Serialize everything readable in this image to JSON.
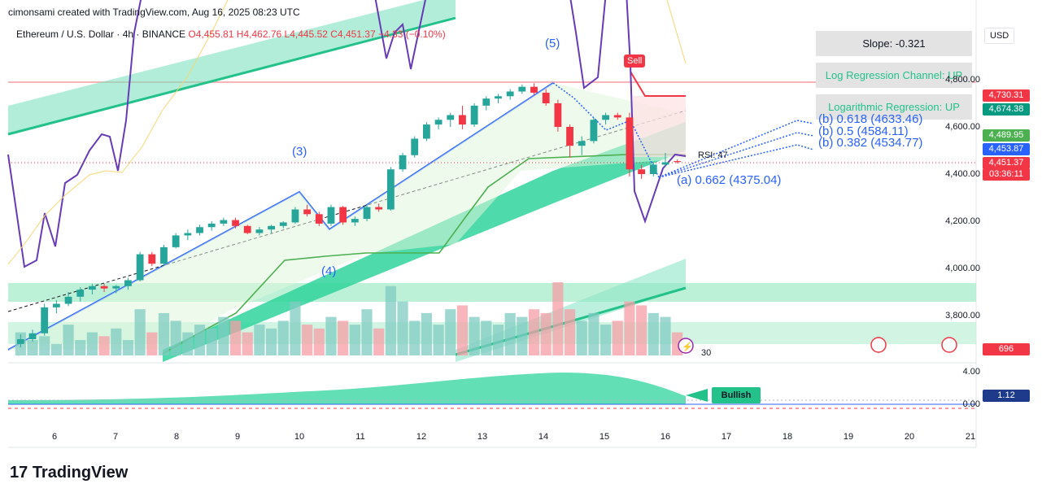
{
  "header": {
    "created_by": "cimonsami created with TradingView.com, Aug 16, 2025 08:23 UTC",
    "symbol": "Ethereum / U.S. Dollar · 4h · BINANCE",
    "open": "O4,455.81",
    "high": "H4,462.76",
    "low": "L4,445.52",
    "close": "C4,451.37",
    "change": "−4.33 (−0.10%)"
  },
  "currency_button": "USD",
  "info_boxes": {
    "slope": "Slope: -0.321",
    "log_reg_channel": "Log Regression Channel: UP",
    "log_regression": "Logarithmic Regression: UP"
  },
  "fib_levels": {
    "b618": "(b) 0.618 (4633.46)",
    "b5": "(b) 0.5 (4584.11)",
    "b382": "(b) 0.382 (4534.77)",
    "a662": "(a) 0.662 (4375.04)"
  },
  "waves": {
    "w3": "(3)",
    "w4": "(4)",
    "w5": "(5)"
  },
  "sell_label": "Sell",
  "rsi_label": "RSI: 47",
  "volume_label": "30",
  "oscillator_label": "Bullish",
  "price_axis": [
    "4,800.00",
    "4,600.00",
    "4,400.00",
    "4,200.00",
    "4,000.00",
    "3,800.00"
  ],
  "oscillator_axis": [
    "4.00",
    "0.00"
  ],
  "price_tags": {
    "t4730": "4,730.31",
    "t4674": "4,674.38",
    "t4490": "4,489.95",
    "t4454": "4,453.87",
    "t4451": "4,451.37",
    "timer": "03:36:11",
    "vol": "696",
    "osc": "1.12"
  },
  "colors": {
    "up": "#26a69a",
    "down": "#f23645",
    "channel": "#22c28a",
    "trend": "#2962ff",
    "rsi": "#673ab7"
  },
  "logo": "TradingView",
  "chart_data": {
    "type": "candlestick",
    "title": "Ethereum / U.S. Dollar · 4h · BINANCE",
    "x_tick_labels": [
      "6",
      "7",
      "8",
      "9",
      "10",
      "11",
      "12",
      "13",
      "14",
      "15",
      "16",
      "17",
      "18",
      "19",
      "20",
      "21"
    ],
    "ylim": [
      3650,
      4950
    ],
    "candles": [
      [
        3680,
        3720,
        3665,
        3700
      ],
      [
        3700,
        3740,
        3690,
        3725
      ],
      [
        3725,
        3850,
        3715,
        3835
      ],
      [
        3835,
        3865,
        3810,
        3850
      ],
      [
        3850,
        3900,
        3840,
        3880
      ],
      [
        3880,
        3920,
        3860,
        3910
      ],
      [
        3910,
        3935,
        3890,
        3925
      ],
      [
        3925,
        3935,
        3900,
        3915
      ],
      [
        3915,
        3930,
        3895,
        3925
      ],
      [
        3925,
        3960,
        3910,
        3950
      ],
      [
        3950,
        4070,
        3945,
        4060
      ],
      [
        4060,
        4070,
        4010,
        4020
      ],
      [
        4020,
        4100,
        4010,
        4090
      ],
      [
        4090,
        4150,
        4085,
        4140
      ],
      [
        4140,
        4165,
        4120,
        4150
      ],
      [
        4150,
        4185,
        4140,
        4175
      ],
      [
        4175,
        4200,
        4160,
        4190
      ],
      [
        4190,
        4215,
        4180,
        4205
      ],
      [
        4205,
        4215,
        4170,
        4180
      ],
      [
        4180,
        4185,
        4145,
        4150
      ],
      [
        4150,
        4175,
        4140,
        4165
      ],
      [
        4165,
        4185,
        4150,
        4180
      ],
      [
        4180,
        4200,
        4170,
        4195
      ],
      [
        4195,
        4260,
        4190,
        4250
      ],
      [
        4250,
        4270,
        4220,
        4230
      ],
      [
        4230,
        4240,
        4180,
        4190
      ],
      [
        4190,
        4270,
        4180,
        4260
      ],
      [
        4260,
        4265,
        4185,
        4195
      ],
      [
        4195,
        4220,
        4180,
        4210
      ],
      [
        4210,
        4270,
        4200,
        4260
      ],
      [
        4260,
        4275,
        4240,
        4250
      ],
      [
        4250,
        4430,
        4245,
        4420
      ],
      [
        4420,
        4490,
        4410,
        4480
      ],
      [
        4480,
        4560,
        4470,
        4550
      ],
      [
        4550,
        4620,
        4540,
        4610
      ],
      [
        4610,
        4640,
        4590,
        4630
      ],
      [
        4630,
        4660,
        4600,
        4650
      ],
      [
        4650,
        4690,
        4590,
        4610
      ],
      [
        4610,
        4700,
        4600,
        4690
      ],
      [
        4690,
        4730,
        4670,
        4720
      ],
      [
        4720,
        4740,
        4700,
        4730
      ],
      [
        4730,
        4760,
        4715,
        4750
      ],
      [
        4750,
        4780,
        4740,
        4770
      ],
      [
        4770,
        4785,
        4735,
        4745
      ],
      [
        4745,
        4760,
        4690,
        4700
      ],
      [
        4700,
        4715,
        4580,
        4600
      ],
      [
        4600,
        4610,
        4470,
        4520
      ],
      [
        4520,
        4560,
        4480,
        4540
      ],
      [
        4540,
        4640,
        4530,
        4630
      ],
      [
        4630,
        4660,
        4610,
        4650
      ],
      [
        4650,
        4660,
        4630,
        4640
      ],
      [
        4640,
        4660,
        4390,
        4420
      ],
      [
        4420,
        4440,
        4380,
        4400
      ],
      [
        4400,
        4450,
        4390,
        4440
      ],
      [
        4440,
        4490,
        4430,
        4450
      ],
      [
        4455,
        4462,
        4445,
        4451
      ]
    ],
    "volume": [
      30,
      20,
      25,
      15,
      40,
      20,
      30,
      25,
      35,
      20,
      60,
      30,
      55,
      45,
      30,
      40,
      35,
      50,
      45,
      30,
      40,
      35,
      45,
      70,
      40,
      35,
      50,
      45,
      40,
      60,
      35,
      90,
      70,
      45,
      55,
      40,
      60,
      65,
      50,
      45,
      40,
      55,
      50,
      60,
      55,
      95,
      60,
      45,
      55,
      40,
      45,
      70,
      65,
      55,
      50,
      30
    ]
  }
}
